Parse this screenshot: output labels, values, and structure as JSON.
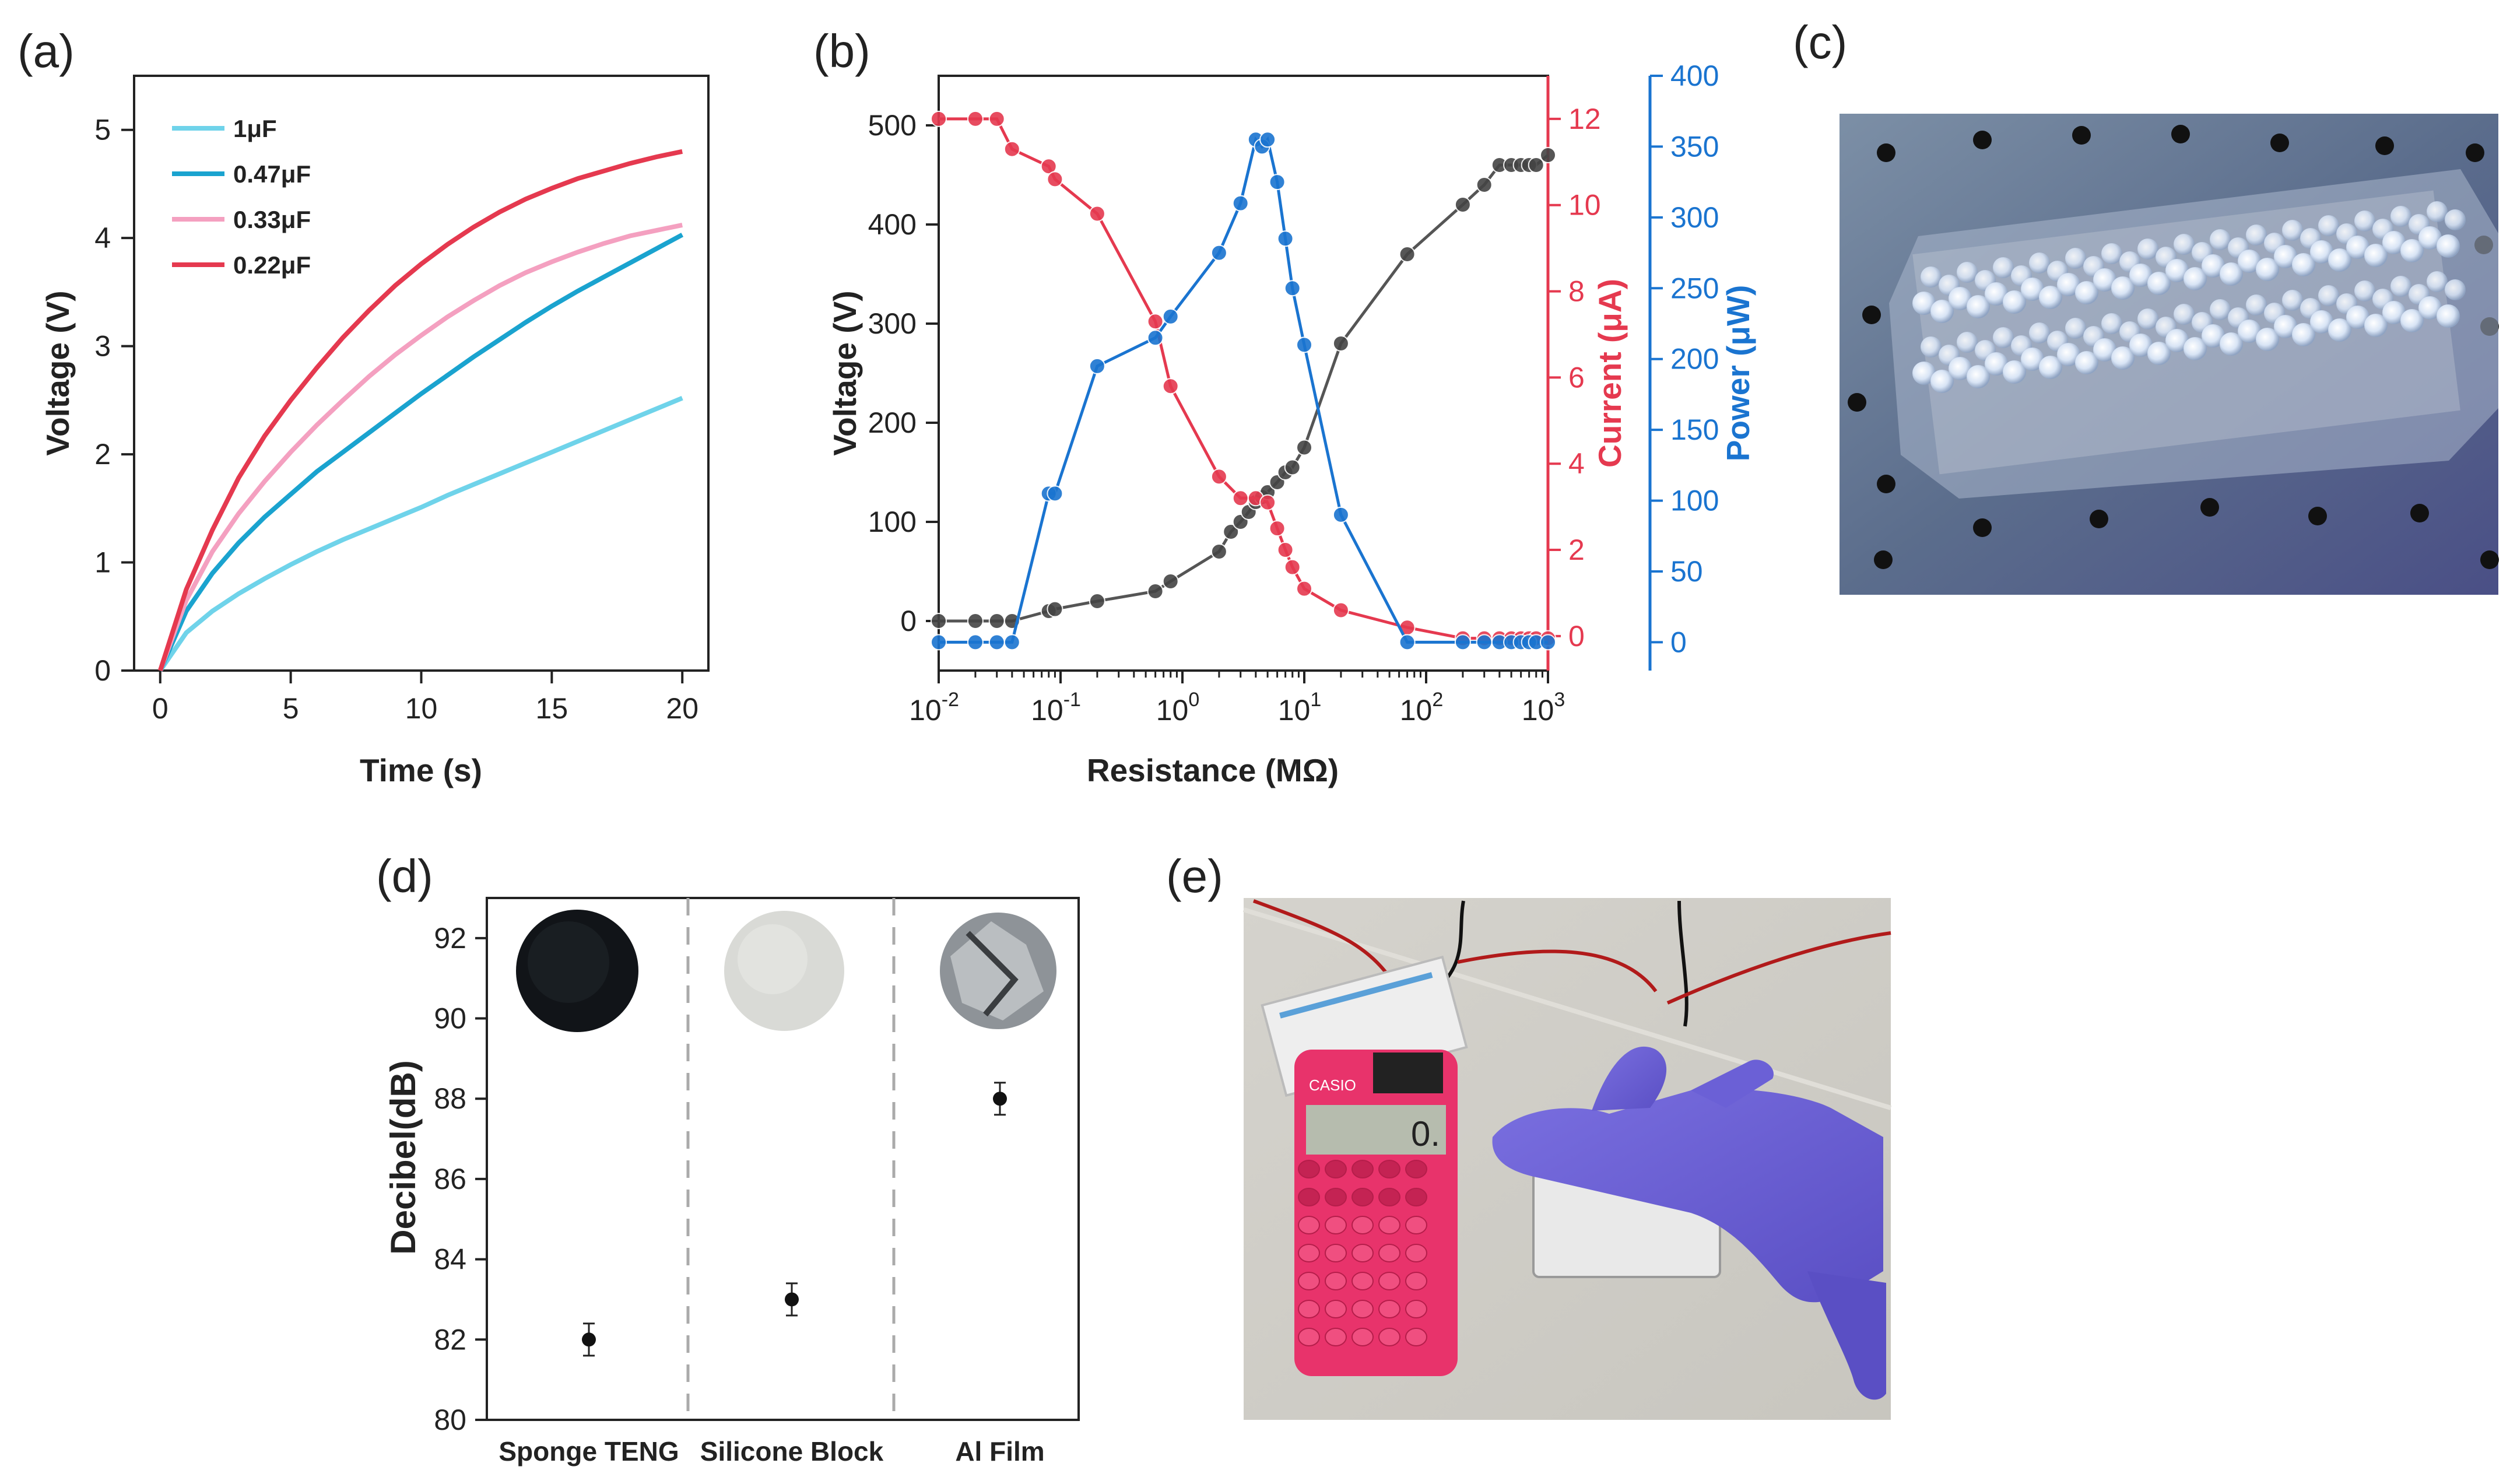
{
  "panels": {
    "a": {
      "label": "(a)"
    },
    "b": {
      "label": "(b)"
    },
    "c": {
      "label": "(c)"
    },
    "d": {
      "label": "(d)"
    },
    "e": {
      "label": "(e)"
    }
  },
  "chart_data": [
    {
      "id": "a",
      "type": "line",
      "xlabel": "Time (s)",
      "ylabel": "Voltage (V)",
      "xlim": [
        -1,
        21
      ],
      "ylim": [
        0,
        5.5
      ],
      "xticks": [
        0,
        5,
        10,
        15,
        20
      ],
      "yticks": [
        0,
        1,
        2,
        3,
        4,
        5
      ],
      "legend": "top-left",
      "series": [
        {
          "name": "1μF",
          "color": "#6fd3ea",
          "x": [
            0,
            1,
            2,
            3,
            4,
            5,
            6,
            7,
            8,
            9,
            10,
            11,
            12,
            13,
            14,
            15,
            16,
            17,
            18,
            19,
            20
          ],
          "y": [
            0,
            0.35,
            0.55,
            0.71,
            0.85,
            0.98,
            1.1,
            1.21,
            1.31,
            1.41,
            1.51,
            1.62,
            1.72,
            1.82,
            1.92,
            2.02,
            2.12,
            2.22,
            2.32,
            2.42,
            2.52
          ]
        },
        {
          "name": "0.47μF",
          "color": "#1aa3cf",
          "x": [
            0,
            1,
            2,
            3,
            4,
            5,
            6,
            7,
            8,
            9,
            10,
            11,
            12,
            13,
            14,
            15,
            16,
            17,
            18,
            19,
            20
          ],
          "y": [
            0,
            0.55,
            0.9,
            1.18,
            1.42,
            1.63,
            1.84,
            2.02,
            2.2,
            2.38,
            2.56,
            2.73,
            2.9,
            3.06,
            3.22,
            3.37,
            3.51,
            3.64,
            3.77,
            3.9,
            4.03
          ]
        },
        {
          "name": "0.33μF",
          "color": "#f4a0c0",
          "x": [
            0,
            1,
            2,
            3,
            4,
            5,
            6,
            7,
            8,
            9,
            10,
            11,
            12,
            13,
            14,
            15,
            16,
            17,
            18,
            19,
            20
          ],
          "y": [
            0,
            0.65,
            1.1,
            1.45,
            1.75,
            2.02,
            2.27,
            2.5,
            2.72,
            2.92,
            3.1,
            3.27,
            3.42,
            3.56,
            3.68,
            3.78,
            3.87,
            3.95,
            4.02,
            4.07,
            4.12
          ]
        },
        {
          "name": "0.22μF",
          "color": "#e5394f",
          "x": [
            0,
            1,
            2,
            3,
            4,
            5,
            6,
            7,
            8,
            9,
            10,
            11,
            12,
            13,
            14,
            15,
            16,
            17,
            18,
            19,
            20
          ],
          "y": [
            0,
            0.75,
            1.3,
            1.78,
            2.17,
            2.5,
            2.8,
            3.08,
            3.33,
            3.56,
            3.76,
            3.94,
            4.1,
            4.24,
            4.36,
            4.46,
            4.55,
            4.62,
            4.69,
            4.75,
            4.8
          ]
        }
      ]
    },
    {
      "id": "b",
      "type": "line",
      "xscale": "log",
      "xlabel": "Resistance (MΩ)",
      "xlim": [
        0.01,
        1000
      ],
      "xticks": [
        "10",
        "10",
        "10",
        "10",
        "10",
        "10"
      ],
      "xtick_exponents": [
        "-2",
        "-1",
        "0",
        "1",
        "2",
        "3"
      ],
      "axes": [
        {
          "side": "left",
          "label": "Voltage (V)",
          "color": "#222222",
          "ylim": [
            -50,
            550
          ],
          "yticks": [
            0,
            100,
            200,
            300,
            400,
            500
          ]
        },
        {
          "side": "right",
          "label": "Current (μA)",
          "color": "#e5394f",
          "ylim": [
            -0.8,
            13
          ],
          "yticks": [
            0,
            2,
            4,
            6,
            8,
            10,
            12
          ]
        },
        {
          "side": "right-outer",
          "label": "Power (μW)",
          "color": "#1a74d0",
          "ylim": [
            -20,
            400
          ],
          "yticks": [
            0,
            50,
            100,
            150,
            200,
            250,
            300,
            350,
            400
          ]
        }
      ],
      "series": [
        {
          "name": "Voltage",
          "axis": 0,
          "color": "#555555",
          "marker": "#444444",
          "x": [
            0.01,
            0.02,
            0.03,
            0.04,
            0.08,
            0.09,
            0.2,
            0.6,
            0.8,
            2,
            2.5,
            3,
            3.5,
            4,
            4.5,
            5,
            6,
            7,
            8,
            10,
            20,
            70,
            200,
            300,
            400,
            500,
            600,
            700,
            800,
            1000
          ],
          "y": [
            0,
            0,
            0,
            0,
            10,
            12,
            20,
            30,
            40,
            70,
            90,
            100,
            110,
            120,
            125,
            130,
            140,
            150,
            155,
            175,
            280,
            370,
            420,
            440,
            460,
            460,
            460,
            460,
            460,
            470
          ]
        },
        {
          "name": "Current",
          "axis": 1,
          "color": "#e5394f",
          "marker": "#e5394f",
          "x": [
            0.01,
            0.02,
            0.03,
            0.04,
            0.08,
            0.09,
            0.2,
            0.6,
            0.8,
            2,
            3,
            4,
            5,
            6,
            7,
            8,
            10,
            20,
            70,
            200,
            300,
            400,
            500,
            600,
            700,
            800,
            1000
          ],
          "y": [
            12,
            12,
            12,
            11.3,
            10.9,
            10.6,
            9.8,
            7.3,
            5.8,
            3.7,
            3.2,
            3.2,
            3.1,
            2.5,
            2.0,
            1.6,
            1.1,
            0.6,
            0.2,
            -0.05,
            -0.05,
            -0.05,
            -0.05,
            -0.05,
            -0.05,
            -0.05,
            -0.05
          ]
        },
        {
          "name": "Power",
          "axis": 2,
          "color": "#1a74d0",
          "marker": "#1a74d0",
          "x": [
            0.01,
            0.02,
            0.03,
            0.04,
            0.08,
            0.09,
            0.2,
            0.6,
            0.8,
            2,
            3,
            4,
            4.5,
            5,
            6,
            7,
            8,
            10,
            20,
            70,
            200,
            300,
            400,
            500,
            600,
            700,
            800,
            1000
          ],
          "y": [
            0,
            0,
            0,
            0,
            105,
            105,
            195,
            215,
            230,
            275,
            310,
            355,
            350,
            355,
            325,
            285,
            250,
            210,
            90,
            0,
            0,
            0,
            0,
            0,
            0,
            0,
            0,
            0
          ]
        }
      ]
    },
    {
      "id": "d",
      "type": "scatter",
      "ylabel": "Decibel(dB)",
      "ylim": [
        80,
        93
      ],
      "yticks": [
        80,
        82,
        84,
        86,
        88,
        90,
        92
      ],
      "categories": [
        "Sponge TENG",
        "Silicone Block",
        "Al Film"
      ],
      "values": [
        82,
        83,
        88
      ],
      "errors": [
        0.4,
        0.4,
        0.4
      ],
      "marker_color": "#111111"
    }
  ],
  "photos": {
    "c": {
      "description_icon": "led-array-photo"
    },
    "d_samples": [
      "sponge-sample-photo",
      "silicone-sample-photo",
      "al-film-sample-photo"
    ],
    "e": {
      "description_icon": "calculator-hand-photo"
    }
  },
  "photo_text": {
    "calculator_brand": "CASIO",
    "calculator_display": "0."
  }
}
